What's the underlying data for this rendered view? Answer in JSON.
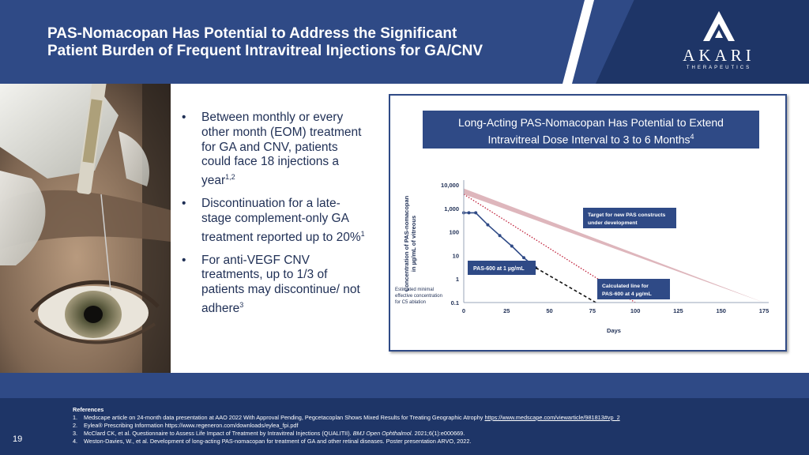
{
  "header": {
    "title_line1": "PAS-Nomacopan Has Potential to Address the Significant",
    "title_line2": "Patient Burden of Frequent Intravitreal Injections for GA/CNV",
    "logo_word": "AKARI",
    "logo_sub": "THERAPEUTICS"
  },
  "bullets": [
    {
      "text": "Between monthly or every other month (EOM) treatment for GA and CNV, patients could face 18 injections a year",
      "sup": "1,2"
    },
    {
      "text": "Discontinuation for a late-stage complement-only GA treatment reported up to 20%",
      "sup": "1"
    },
    {
      "text": "For anti-VEGF CNV treatments, up to 1/3 of patients may discontinue/ not adhere",
      "sup": "3"
    }
  ],
  "chart_panel": {
    "title_line1": "Long-Acting PAS-Nomacopan Has Potential to Extend",
    "title_line2": "Intravitreal Dose Interval to 3 to 6 Months",
    "title_sup": "4"
  },
  "chart_data": {
    "type": "line",
    "title": "Long-Acting PAS-Nomacopan Has Potential to Extend Intravitreal Dose Interval to 3 to 6 Months",
    "xlabel": "Days",
    "ylabel_line1": "Concentration of PAS-nomacopan",
    "ylabel_line2": "in µg/mL of vitreous",
    "y_scale": "log",
    "xlim": [
      0,
      175
    ],
    "ylim": [
      0.1,
      10000
    ],
    "x_ticks": [
      "0",
      "25",
      "50",
      "75",
      "100",
      "125",
      "150",
      "175"
    ],
    "y_ticks": [
      "10,000",
      "1,000",
      "100",
      "10",
      "1",
      "0.1"
    ],
    "series": [
      {
        "name": "PAS-600 at 1 µg/mL",
        "style": "solid-with-markers",
        "color": "#2f4a86",
        "x": [
          0,
          3,
          7,
          14,
          21,
          28,
          35,
          42
        ],
        "y": [
          650,
          650,
          650,
          200,
          70,
          25,
          8,
          3
        ]
      },
      {
        "name": "PAS-600 at 1 µg/mL (extrapolated)",
        "style": "dashed",
        "color": "#111111",
        "x": [
          42,
          77
        ],
        "y": [
          3,
          0.1
        ]
      },
      {
        "name": "Calculated line for PAS-600 at 4 µg/mL",
        "style": "dotted",
        "color": "#c0203a",
        "x": [
          0,
          100
        ],
        "y": [
          4000,
          0.1
        ]
      }
    ],
    "band": {
      "name": "Target for new PAS constructs under development",
      "color": "#d8a9b0",
      "upper_x": [
        0,
        175
      ],
      "upper_y": [
        7000,
        0.1
      ],
      "lower_x": [
        0,
        175
      ],
      "lower_y": [
        4000,
        0.1
      ]
    },
    "annotations": {
      "target": "Target for new PAS constructs under development",
      "pas600_1": "PAS-600 at 1 µg/mL",
      "calc_line1": "Calculated line for",
      "calc_line2": "PAS-600  at 4 µg/mL",
      "min_eff_line1": "Estimated minimal",
      "min_eff_line2": "effective concentration",
      "min_eff_line3": "for C5 ablation"
    }
  },
  "references": {
    "heading": "References",
    "items": [
      {
        "num": "1.",
        "text": "Medscape article on 24-month data presentation at AAO 2022 With Approval Pending, Pegcetacoplan Shows Mixed Results for Treating Geographic Atrophy ",
        "link": "https://www.medscape.com/viewarticle/981813#vp_2"
      },
      {
        "num": "2.",
        "text": "Eylea® Prescribing Information https://www.regeneron.com/downloads/eylea_fpi.pdf",
        "link": ""
      },
      {
        "num": "3.",
        "text": "McClard CK, et al. Questionnaire to Assess Life Impact of Treatment by Intravitreal Injections (QUALITII). ",
        "italic": "BMJ Open Ophthalmol",
        "tail": ". 2021;6(1):e000669."
      },
      {
        "num": "4.",
        "text": "Weston-Davies, W., et al. Development of long-acting PAS-nomacopan for treatment of GA and other retinal diseases. Poster presentation ARVO, 2022.",
        "link": ""
      }
    ]
  },
  "page_number": "19"
}
